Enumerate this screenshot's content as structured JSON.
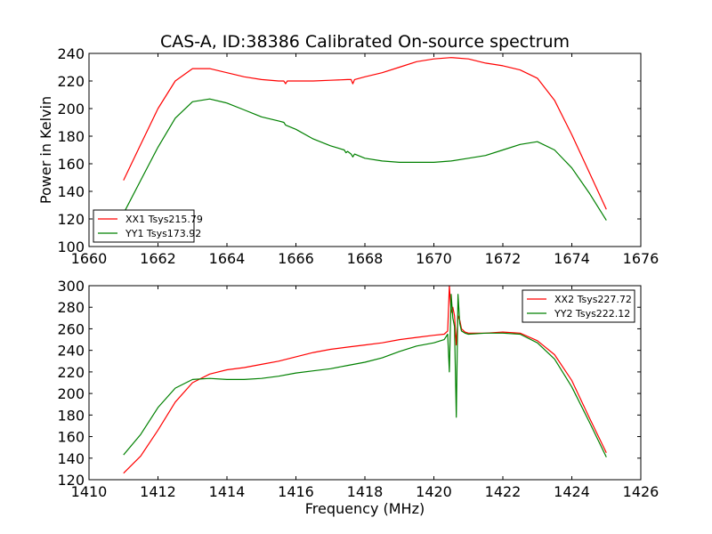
{
  "title": "CAS-A, ID:38386 Calibrated On-source spectrum",
  "chart_data": [
    {
      "type": "line",
      "title": "CAS-A, ID:38386 Calibrated On-source spectrum",
      "xlabel": "",
      "ylabel": "Power in Kelvin",
      "xlim": [
        1660,
        1676
      ],
      "ylim": [
        100,
        240
      ],
      "xticks": [
        1660,
        1662,
        1664,
        1666,
        1668,
        1670,
        1672,
        1674,
        1676
      ],
      "yticks": [
        100,
        120,
        140,
        160,
        180,
        200,
        220,
        240
      ],
      "legend_position": "lower-left",
      "grid": false,
      "series": [
        {
          "name": "XX1 Tsys215.79",
          "color": "#ff0000",
          "x": [
            1661.0,
            1661.5,
            1662.0,
            1662.5,
            1663.0,
            1663.5,
            1664.0,
            1664.5,
            1665.0,
            1665.5,
            1665.65,
            1665.7,
            1665.75,
            1666.0,
            1666.5,
            1667.0,
            1667.5,
            1667.6,
            1667.65,
            1667.7,
            1668.0,
            1668.5,
            1669.0,
            1669.5,
            1670.0,
            1670.5,
            1671.0,
            1671.5,
            1672.0,
            1672.5,
            1673.0,
            1673.5,
            1674.0,
            1674.5,
            1675.0
          ],
          "y": [
            148,
            174,
            200,
            220,
            229,
            229,
            226,
            223,
            221,
            220,
            220,
            218,
            220,
            220,
            220,
            220.5,
            221,
            221,
            218,
            221,
            223,
            226,
            230,
            234,
            236,
            237,
            236,
            233,
            231,
            228,
            222,
            206,
            181,
            154,
            127
          ]
        },
        {
          "name": "YY1 Tsys173.92",
          "color": "#008000",
          "x": [
            1661.0,
            1661.5,
            1662.0,
            1662.5,
            1663.0,
            1663.5,
            1664.0,
            1664.5,
            1665.0,
            1665.5,
            1665.65,
            1665.7,
            1666.0,
            1666.5,
            1667.0,
            1667.4,
            1667.45,
            1667.5,
            1667.6,
            1667.65,
            1667.7,
            1668.0,
            1668.5,
            1669.0,
            1669.5,
            1670.0,
            1670.5,
            1671.0,
            1671.5,
            1672.0,
            1672.5,
            1673.0,
            1673.5,
            1674.0,
            1674.5,
            1675.0
          ],
          "y": [
            124,
            148,
            172,
            193,
            205,
            207,
            204,
            199,
            194,
            191,
            190,
            188,
            185,
            178,
            173,
            170,
            168,
            169,
            167,
            165,
            167,
            164,
            162,
            161,
            161,
            161,
            162,
            164,
            166,
            170,
            174,
            176,
            170,
            157,
            139,
            119
          ]
        }
      ]
    },
    {
      "type": "line",
      "title": "",
      "xlabel": "Frequency (MHz)",
      "ylabel": "",
      "xlim": [
        1410,
        1426
      ],
      "ylim": [
        120,
        300
      ],
      "xticks": [
        1410,
        1412,
        1414,
        1416,
        1418,
        1420,
        1422,
        1424,
        1426
      ],
      "yticks": [
        120,
        140,
        160,
        180,
        200,
        220,
        240,
        260,
        280,
        300
      ],
      "legend_position": "upper-right",
      "grid": false,
      "series": [
        {
          "name": "XX2 Tsys227.72",
          "color": "#ff0000",
          "x": [
            1411.0,
            1411.5,
            1412.0,
            1412.5,
            1413.0,
            1413.5,
            1414.0,
            1414.5,
            1415.0,
            1415.5,
            1416.0,
            1416.5,
            1417.0,
            1417.5,
            1418.0,
            1418.5,
            1419.0,
            1419.5,
            1420.0,
            1420.3,
            1420.4,
            1420.45,
            1420.5,
            1420.55,
            1420.6,
            1420.65,
            1420.7,
            1420.75,
            1420.8,
            1420.9,
            1421.0,
            1421.5,
            1422.0,
            1422.5,
            1423.0,
            1423.5,
            1424.0,
            1424.5,
            1425.0
          ],
          "y": [
            126,
            142,
            166,
            192,
            210,
            218,
            222,
            224,
            227,
            230,
            234,
            238,
            241,
            243,
            245,
            247,
            250,
            252,
            254,
            255,
            258,
            300,
            275,
            280,
            272,
            245,
            272,
            268,
            260,
            257,
            256,
            256,
            257,
            256,
            249,
            236,
            212,
            178,
            145
          ]
        },
        {
          "name": "YY2 Tsys222.12",
          "color": "#008000",
          "x": [
            1411.0,
            1411.5,
            1412.0,
            1412.5,
            1413.0,
            1413.5,
            1414.0,
            1414.5,
            1415.0,
            1415.5,
            1416.0,
            1416.5,
            1417.0,
            1417.5,
            1418.0,
            1418.5,
            1419.0,
            1419.5,
            1420.0,
            1420.3,
            1420.4,
            1420.45,
            1420.5,
            1420.55,
            1420.6,
            1420.65,
            1420.7,
            1420.75,
            1420.8,
            1420.9,
            1421.0,
            1421.5,
            1422.0,
            1422.5,
            1423.0,
            1423.5,
            1424.0,
            1424.5,
            1425.0
          ],
          "y": [
            143,
            162,
            187,
            205,
            213,
            214,
            213,
            213,
            214,
            216,
            219,
            221,
            223,
            226,
            229,
            233,
            239,
            244,
            247,
            250,
            255,
            220,
            292,
            270,
            262,
            178,
            292,
            265,
            258,
            256,
            255,
            256,
            256,
            255,
            247,
            232,
            206,
            174,
            141
          ]
        }
      ]
    }
  ]
}
